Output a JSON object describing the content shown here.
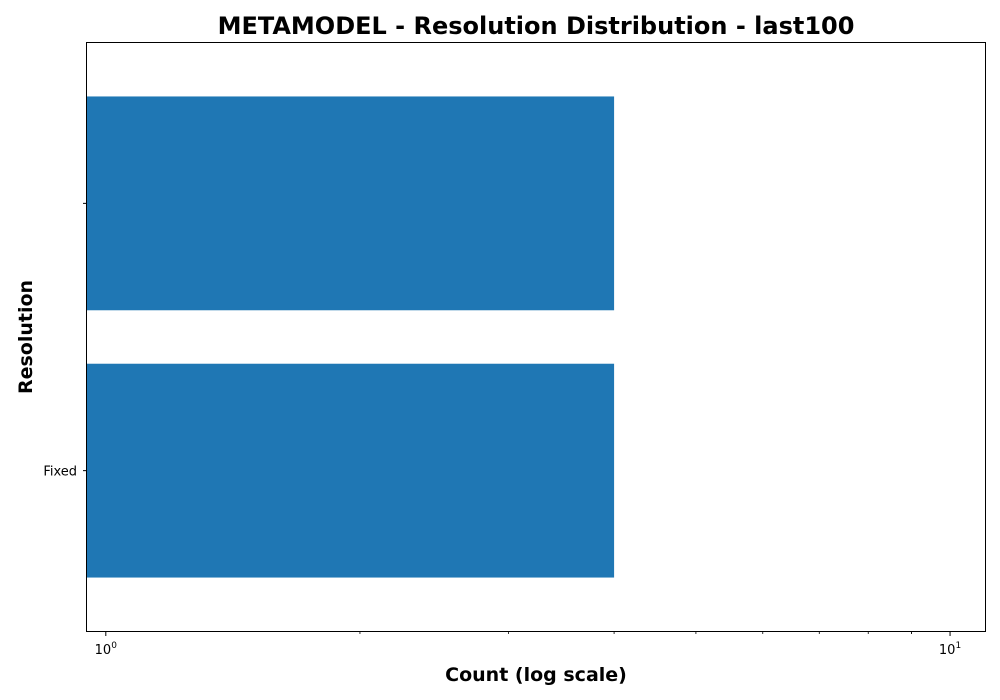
{
  "chart_data": {
    "type": "bar",
    "orientation": "horizontal",
    "title": "METAMODEL - Resolution Distribution - last100",
    "xlabel": "Count (log scale)",
    "ylabel": "Resolution",
    "x_scale": "log",
    "xlim": [
      0.95,
      11
    ],
    "categories": [
      "Fixed",
      ""
    ],
    "values": [
      4,
      4
    ],
    "x_ticks": [
      {
        "value": 1,
        "base": "10",
        "exp": "0"
      },
      {
        "value": 10,
        "base": "10",
        "exp": "1"
      }
    ],
    "bar_color": "#1f77b4",
    "grid": false,
    "legend": null
  }
}
